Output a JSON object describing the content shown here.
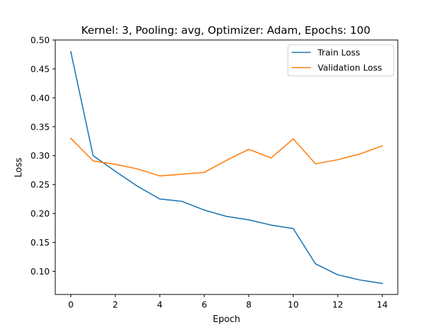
{
  "chart_data": {
    "type": "line",
    "title": "Kernel: 3, Pooling: avg, Optimizer: Adam, Epochs: 100",
    "xlabel": "Epoch",
    "ylabel": "Loss",
    "x": [
      0,
      1,
      2,
      3,
      4,
      5,
      6,
      7,
      8,
      9,
      10,
      11,
      12,
      13,
      14
    ],
    "xlim": [
      -0.7,
      14.7
    ],
    "ylim": [
      0.06,
      0.5
    ],
    "xticks": [
      0,
      2,
      4,
      6,
      8,
      10,
      12,
      14
    ],
    "xtick_labels": [
      "0",
      "2",
      "4",
      "6",
      "8",
      "10",
      "12",
      "14"
    ],
    "yticks": [
      0.1,
      0.15,
      0.2,
      0.25,
      0.3,
      0.35,
      0.4,
      0.45,
      0.5
    ],
    "ytick_labels": [
      "0.10",
      "0.15",
      "0.20",
      "0.25",
      "0.30",
      "0.35",
      "0.40",
      "0.45",
      "0.50"
    ],
    "grid": false,
    "legend_position": "upper right",
    "series": [
      {
        "name": "Train Loss",
        "color": "#1f77b4",
        "values": [
          0.48,
          0.3,
          0.273,
          0.247,
          0.225,
          0.221,
          0.206,
          0.195,
          0.189,
          0.18,
          0.174,
          0.113,
          0.094,
          0.085,
          0.079
        ]
      },
      {
        "name": "Validation Loss",
        "color": "#ff7f0e",
        "values": [
          0.33,
          0.291,
          0.285,
          0.277,
          0.265,
          0.268,
          0.271,
          0.292,
          0.311,
          0.296,
          0.329,
          0.286,
          0.293,
          0.303,
          0.317
        ]
      }
    ]
  }
}
